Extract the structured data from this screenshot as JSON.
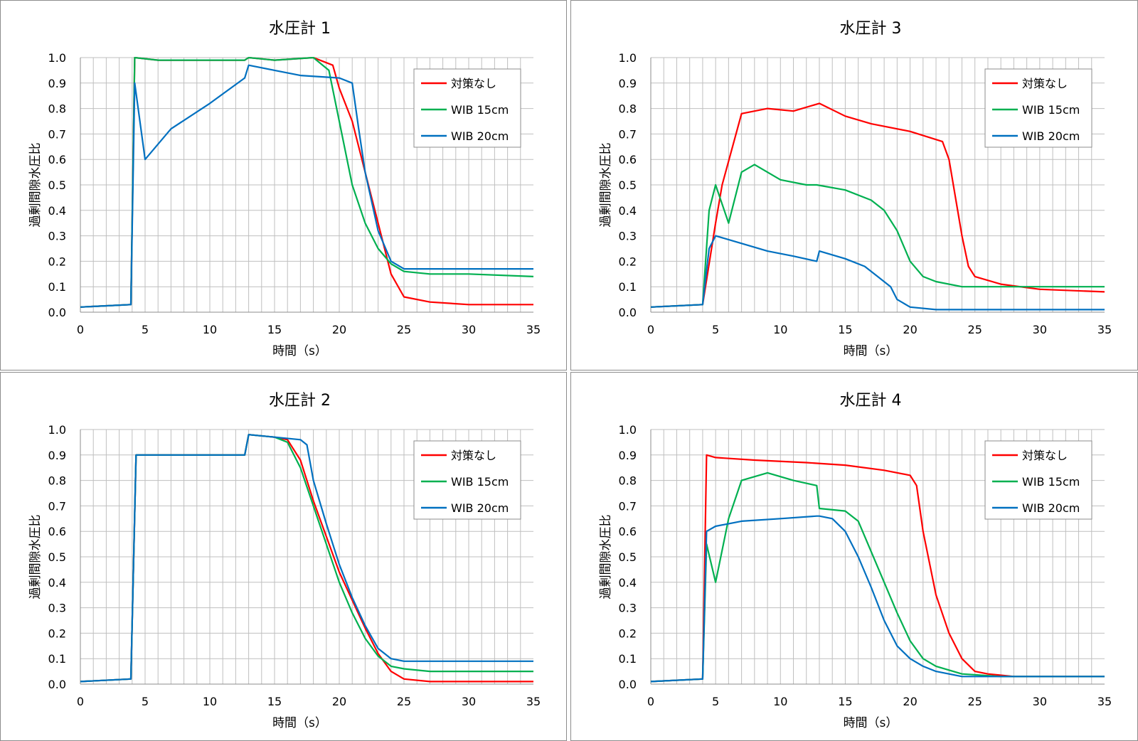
{
  "colors": {
    "red": "#ff0000",
    "green": "#00b050",
    "blue": "#0070c0",
    "grid": "#bfbfbf",
    "axis": "#8c8c8c"
  },
  "chart_data": [
    {
      "type": "line",
      "title": "水圧計 1",
      "xlabel": "時間（s）",
      "ylabel": "過剰間隙水圧比",
      "xlim": [
        0,
        35
      ],
      "ylim": [
        0,
        1.0
      ],
      "xticks": [
        "0",
        "5",
        "10",
        "15",
        "20",
        "25",
        "30",
        "35"
      ],
      "yticks": [
        "0.0",
        "0.1",
        "0.2",
        "0.3",
        "0.4",
        "0.5",
        "0.6",
        "0.7",
        "0.8",
        "0.9",
        "1.0"
      ],
      "grid": true,
      "legend_position": "top-right",
      "series": [
        {
          "name": "対策なし",
          "color": "#ff0000",
          "x": [
            0,
            3.9,
            4.2,
            6,
            10,
            12.7,
            13,
            15,
            18,
            19.5,
            20,
            21,
            22,
            23,
            24,
            25,
            27,
            30,
            35
          ],
          "y": [
            0.02,
            0.03,
            1.0,
            0.99,
            0.99,
            0.99,
            1.0,
            0.99,
            1.0,
            0.97,
            0.88,
            0.75,
            0.55,
            0.35,
            0.15,
            0.06,
            0.04,
            0.03,
            0.03
          ]
        },
        {
          "name": "WIB 15cm",
          "color": "#00b050",
          "x": [
            0,
            3.9,
            4.2,
            6,
            10,
            12.7,
            13,
            15,
            18,
            19.2,
            20,
            21,
            22,
            23,
            24,
            25,
            27,
            30,
            35
          ],
          "y": [
            0.02,
            0.03,
            1.0,
            0.99,
            0.99,
            0.99,
            1.0,
            0.99,
            1.0,
            0.95,
            0.75,
            0.5,
            0.35,
            0.25,
            0.19,
            0.16,
            0.15,
            0.15,
            0.14
          ]
        },
        {
          "name": "WIB 20cm",
          "color": "#0070c0",
          "x": [
            0,
            3.9,
            4.2,
            5,
            7,
            10,
            12.7,
            13,
            15,
            17,
            20,
            21,
            21.5,
            22,
            23,
            24,
            25,
            27,
            30,
            35
          ],
          "y": [
            0.02,
            0.03,
            0.9,
            0.6,
            0.72,
            0.82,
            0.92,
            0.97,
            0.95,
            0.93,
            0.92,
            0.9,
            0.72,
            0.55,
            0.32,
            0.2,
            0.17,
            0.17,
            0.17,
            0.17
          ]
        }
      ]
    },
    {
      "type": "line",
      "title": "水圧計 3",
      "xlabel": "時間（s）",
      "ylabel": "過剰間隙水圧比",
      "xlim": [
        0,
        35
      ],
      "ylim": [
        0,
        1.0
      ],
      "xticks": [
        "0",
        "5",
        "10",
        "15",
        "20",
        "25",
        "30",
        "35"
      ],
      "yticks": [
        "0.0",
        "0.1",
        "0.2",
        "0.3",
        "0.4",
        "0.5",
        "0.6",
        "0.7",
        "0.8",
        "0.9",
        "1.0"
      ],
      "grid": true,
      "legend_position": "top-right",
      "series": [
        {
          "name": "対策なし",
          "color": "#ff0000",
          "x": [
            0,
            4,
            5,
            5.5,
            7,
            9,
            11,
            13,
            15,
            17,
            20,
            22.5,
            23,
            23.5,
            24,
            24.5,
            25,
            27,
            30,
            35
          ],
          "y": [
            0.02,
            0.03,
            0.35,
            0.5,
            0.78,
            0.8,
            0.79,
            0.82,
            0.77,
            0.74,
            0.71,
            0.67,
            0.6,
            0.45,
            0.3,
            0.18,
            0.14,
            0.11,
            0.09,
            0.08
          ]
        },
        {
          "name": "WIB 15cm",
          "color": "#00b050",
          "x": [
            0,
            4,
            4.5,
            5,
            6,
            7,
            8,
            10,
            12,
            12.8,
            15,
            17,
            18,
            19,
            20,
            21,
            22,
            24,
            27,
            30,
            35
          ],
          "y": [
            0.02,
            0.03,
            0.4,
            0.5,
            0.35,
            0.55,
            0.58,
            0.52,
            0.5,
            0.5,
            0.48,
            0.44,
            0.4,
            0.32,
            0.2,
            0.14,
            0.12,
            0.1,
            0.1,
            0.1,
            0.1
          ]
        },
        {
          "name": "WIB 20cm",
          "color": "#0070c0",
          "x": [
            0,
            4,
            4.5,
            5,
            7,
            9,
            11,
            12.8,
            13,
            15,
            16.5,
            17.5,
            18.5,
            19,
            20,
            22,
            25,
            30,
            35
          ],
          "y": [
            0.02,
            0.03,
            0.25,
            0.3,
            0.27,
            0.24,
            0.22,
            0.2,
            0.24,
            0.21,
            0.18,
            0.14,
            0.1,
            0.05,
            0.02,
            0.01,
            0.01,
            0.01,
            0.01
          ]
        }
      ]
    },
    {
      "type": "line",
      "title": "水圧計 2",
      "xlabel": "時間（s）",
      "ylabel": "過剰間隙水圧比",
      "xlim": [
        0,
        35
      ],
      "ylim": [
        0,
        1.0
      ],
      "xticks": [
        "0",
        "5",
        "10",
        "15",
        "20",
        "25",
        "30",
        "35"
      ],
      "yticks": [
        "0.0",
        "0.1",
        "0.2",
        "0.3",
        "0.4",
        "0.5",
        "0.6",
        "0.7",
        "0.8",
        "0.9",
        "1.0"
      ],
      "grid": true,
      "legend_position": "top-right",
      "series": [
        {
          "name": "対策なし",
          "color": "#ff0000",
          "x": [
            0,
            3.9,
            4.3,
            6,
            10,
            12.7,
            13,
            15,
            16,
            17,
            18,
            19,
            20,
            21,
            22,
            23,
            24,
            25,
            27,
            30,
            35
          ],
          "y": [
            0.01,
            0.02,
            0.9,
            0.9,
            0.9,
            0.9,
            0.98,
            0.97,
            0.96,
            0.88,
            0.72,
            0.58,
            0.44,
            0.33,
            0.22,
            0.12,
            0.05,
            0.02,
            0.01,
            0.01,
            0.01
          ]
        },
        {
          "name": "WIB 15cm",
          "color": "#00b050",
          "x": [
            0,
            3.9,
            4.3,
            6,
            10,
            12.7,
            13,
            15,
            16,
            17,
            18,
            19,
            20,
            21,
            22,
            23,
            24,
            25,
            27,
            30,
            35
          ],
          "y": [
            0.01,
            0.02,
            0.9,
            0.9,
            0.9,
            0.9,
            0.98,
            0.97,
            0.95,
            0.85,
            0.7,
            0.55,
            0.4,
            0.28,
            0.18,
            0.11,
            0.07,
            0.06,
            0.05,
            0.05,
            0.05
          ]
        },
        {
          "name": "WIB 20cm",
          "color": "#0070c0",
          "x": [
            0,
            3.9,
            4.3,
            6,
            10,
            12.7,
            13,
            15,
            17,
            17.5,
            18,
            19,
            20,
            21,
            22,
            23,
            24,
            25,
            27,
            30,
            35
          ],
          "y": [
            0.01,
            0.02,
            0.9,
            0.9,
            0.9,
            0.9,
            0.98,
            0.97,
            0.96,
            0.94,
            0.8,
            0.63,
            0.47,
            0.34,
            0.23,
            0.14,
            0.1,
            0.09,
            0.09,
            0.09,
            0.09
          ]
        }
      ]
    },
    {
      "type": "line",
      "title": "水圧計 4",
      "xlabel": "時間（s）",
      "ylabel": "過剰間隙水圧比",
      "xlim": [
        0,
        35
      ],
      "ylim": [
        0,
        1.0
      ],
      "xticks": [
        "0",
        "5",
        "10",
        "15",
        "20",
        "25",
        "30",
        "35"
      ],
      "yticks": [
        "0.0",
        "0.1",
        "0.2",
        "0.3",
        "0.4",
        "0.5",
        "0.6",
        "0.7",
        "0.8",
        "0.9",
        "1.0"
      ],
      "grid": true,
      "legend_position": "top-right",
      "series": [
        {
          "name": "対策なし",
          "color": "#ff0000",
          "x": [
            0,
            4,
            4.3,
            5,
            8,
            12,
            15,
            18,
            20,
            20.5,
            21,
            22,
            23,
            24,
            25,
            26,
            28,
            30,
            35
          ],
          "y": [
            0.01,
            0.02,
            0.9,
            0.89,
            0.88,
            0.87,
            0.86,
            0.84,
            0.82,
            0.78,
            0.6,
            0.35,
            0.2,
            0.1,
            0.05,
            0.04,
            0.03,
            0.03,
            0.03
          ]
        },
        {
          "name": "WIB 15cm",
          "color": "#00b050",
          "x": [
            0,
            4,
            4.3,
            5,
            6,
            7,
            9,
            11,
            12.8,
            13,
            15,
            16,
            17,
            18,
            19,
            20,
            21,
            22,
            24,
            27,
            30,
            35
          ],
          "y": [
            0.01,
            0.02,
            0.55,
            0.4,
            0.65,
            0.8,
            0.83,
            0.8,
            0.78,
            0.69,
            0.68,
            0.64,
            0.52,
            0.4,
            0.28,
            0.17,
            0.1,
            0.07,
            0.04,
            0.03,
            0.03,
            0.03
          ]
        },
        {
          "name": "WIB 20cm",
          "color": "#0070c0",
          "x": [
            0,
            4,
            4.3,
            5,
            7,
            10,
            12.8,
            13,
            14,
            15,
            16,
            17,
            18,
            19,
            20,
            21,
            22,
            24,
            27,
            30,
            35
          ],
          "y": [
            0.01,
            0.02,
            0.6,
            0.62,
            0.64,
            0.65,
            0.66,
            0.66,
            0.65,
            0.6,
            0.5,
            0.38,
            0.25,
            0.15,
            0.1,
            0.07,
            0.05,
            0.03,
            0.03,
            0.03,
            0.03
          ]
        }
      ]
    }
  ]
}
